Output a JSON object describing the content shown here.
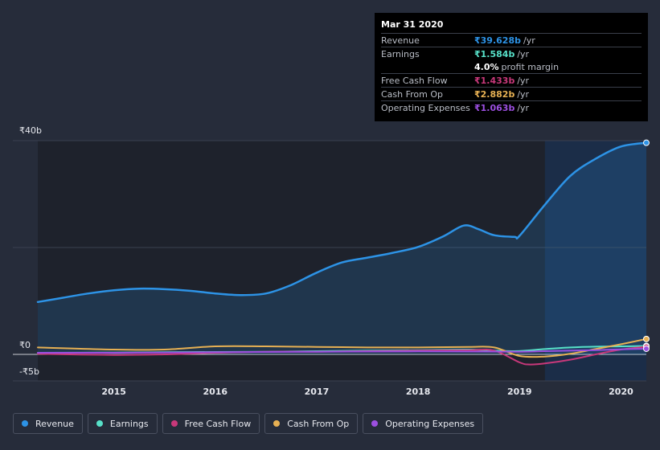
{
  "colors": {
    "background": "#262c3a",
    "plot_bg": "#1e222c",
    "revenue": "#2d93e6",
    "earnings": "#57e0c8",
    "free_cash_flow": "#c8387a",
    "cash_from_op": "#e6b053",
    "operating_expenses": "#9c4fe0"
  },
  "tooltip": {
    "date": "Mar 31 2020",
    "rows": [
      {
        "label": "Revenue",
        "value": "₹39.628b",
        "unit": "/yr",
        "color": "#2d93e6"
      },
      {
        "label": "Earnings",
        "value": "₹1.584b",
        "unit": "/yr",
        "color": "#57e0c8"
      },
      {
        "label": "",
        "value": "4.0%",
        "unit": "profit margin",
        "color": "#ffffff"
      },
      {
        "label": "Free Cash Flow",
        "value": "₹1.433b",
        "unit": "/yr",
        "color": "#c8387a"
      },
      {
        "label": "Cash From Op",
        "value": "₹2.882b",
        "unit": "/yr",
        "color": "#e6b053"
      },
      {
        "label": "Operating Expenses",
        "value": "₹1.063b",
        "unit": "/yr",
        "color": "#9c4fe0"
      }
    ]
  },
  "legend": [
    {
      "label": "Revenue",
      "color": "#2d93e6"
    },
    {
      "label": "Earnings",
      "color": "#57e0c8"
    },
    {
      "label": "Free Cash Flow",
      "color": "#c8387a"
    },
    {
      "label": "Cash From Op",
      "color": "#e6b053"
    },
    {
      "label": "Operating Expenses",
      "color": "#9c4fe0"
    }
  ],
  "chart_data": {
    "type": "line",
    "title": "",
    "xlabel": "",
    "ylabel": "",
    "y_ticks": [
      {
        "value": 40,
        "label": "₹40b"
      },
      {
        "value": 0,
        "label": "₹0"
      },
      {
        "value": -5,
        "label": "-₹5b"
      }
    ],
    "x_ticks": [
      {
        "value": 2015,
        "label": "2015"
      },
      {
        "value": 2016,
        "label": "2016"
      },
      {
        "value": 2017,
        "label": "2017"
      },
      {
        "value": 2018,
        "label": "2018"
      },
      {
        "value": 2019,
        "label": "2019"
      },
      {
        "value": 2020,
        "label": "2020"
      }
    ],
    "xlim": [
      2014.25,
      2020.25
    ],
    "ylim": [
      -5,
      40
    ],
    "highlight_from": 2019.25,
    "grid": true,
    "series": [
      {
        "name": "Revenue",
        "key": "revenue",
        "area": true,
        "points": [
          [
            2014.25,
            9.8
          ],
          [
            2014.5,
            10.6
          ],
          [
            2014.75,
            11.4
          ],
          [
            2015.0,
            12.0
          ],
          [
            2015.25,
            12.3
          ],
          [
            2015.5,
            12.2
          ],
          [
            2015.75,
            11.9
          ],
          [
            2016.0,
            11.4
          ],
          [
            2016.25,
            11.1
          ],
          [
            2016.5,
            11.4
          ],
          [
            2016.75,
            13.0
          ],
          [
            2017.0,
            15.3
          ],
          [
            2017.25,
            17.2
          ],
          [
            2017.5,
            18.1
          ],
          [
            2017.75,
            19.0
          ],
          [
            2018.0,
            20.1
          ],
          [
            2018.25,
            22.1
          ],
          [
            2018.45,
            24.1
          ],
          [
            2018.6,
            23.4
          ],
          [
            2018.75,
            22.3
          ],
          [
            2018.95,
            22.0
          ],
          [
            2019.0,
            22.2
          ],
          [
            2019.25,
            28.0
          ],
          [
            2019.5,
            33.4
          ],
          [
            2019.75,
            36.6
          ],
          [
            2020.0,
            38.9
          ],
          [
            2020.25,
            39.6
          ]
        ]
      },
      {
        "name": "Earnings",
        "key": "earnings",
        "area": false,
        "points": [
          [
            2014.25,
            0.3
          ],
          [
            2015.0,
            0.35
          ],
          [
            2015.5,
            0.4
          ],
          [
            2016.0,
            0.45
          ],
          [
            2016.5,
            0.5
          ],
          [
            2017.0,
            0.6
          ],
          [
            2017.5,
            0.7
          ],
          [
            2018.0,
            0.8
          ],
          [
            2018.5,
            0.9
          ],
          [
            2018.95,
            0.6
          ],
          [
            2019.25,
            1.0
          ],
          [
            2019.5,
            1.3
          ],
          [
            2019.75,
            1.45
          ],
          [
            2020.0,
            1.5
          ],
          [
            2020.25,
            1.58
          ]
        ]
      },
      {
        "name": "Free Cash Flow",
        "key": "free_cash_flow",
        "area": false,
        "points": [
          [
            2014.25,
            0.1
          ],
          [
            2015.0,
            -0.1
          ],
          [
            2015.5,
            0.0
          ],
          [
            2016.0,
            0.3
          ],
          [
            2016.5,
            0.5
          ],
          [
            2017.0,
            0.5
          ],
          [
            2017.5,
            0.6
          ],
          [
            2018.0,
            0.7
          ],
          [
            2018.5,
            0.8
          ],
          [
            2018.75,
            0.7
          ],
          [
            2019.0,
            -1.5
          ],
          [
            2019.1,
            -1.9
          ],
          [
            2019.25,
            -1.7
          ],
          [
            2019.5,
            -1.0
          ],
          [
            2019.75,
            0.0
          ],
          [
            2020.0,
            0.9
          ],
          [
            2020.25,
            1.43
          ]
        ]
      },
      {
        "name": "Cash From Op",
        "key": "cash_from_op",
        "area": false,
        "points": [
          [
            2014.25,
            1.3
          ],
          [
            2015.0,
            0.9
          ],
          [
            2015.5,
            0.9
          ],
          [
            2016.0,
            1.5
          ],
          [
            2016.5,
            1.5
          ],
          [
            2017.0,
            1.4
          ],
          [
            2017.5,
            1.3
          ],
          [
            2018.0,
            1.3
          ],
          [
            2018.5,
            1.4
          ],
          [
            2018.75,
            1.3
          ],
          [
            2019.0,
            -0.3
          ],
          [
            2019.25,
            -0.4
          ],
          [
            2019.5,
            0.1
          ],
          [
            2019.75,
            1.0
          ],
          [
            2020.0,
            1.9
          ],
          [
            2020.25,
            2.88
          ]
        ]
      },
      {
        "name": "Operating Expenses",
        "key": "operating_expenses",
        "area": false,
        "points": [
          [
            2014.25,
            0.3
          ],
          [
            2015.0,
            0.3
          ],
          [
            2016.0,
            0.4
          ],
          [
            2017.0,
            0.5
          ],
          [
            2018.0,
            0.55
          ],
          [
            2018.95,
            0.5
          ],
          [
            2019.25,
            0.6
          ],
          [
            2019.75,
            0.8
          ],
          [
            2020.0,
            0.95
          ],
          [
            2020.25,
            1.06
          ]
        ]
      }
    ]
  }
}
